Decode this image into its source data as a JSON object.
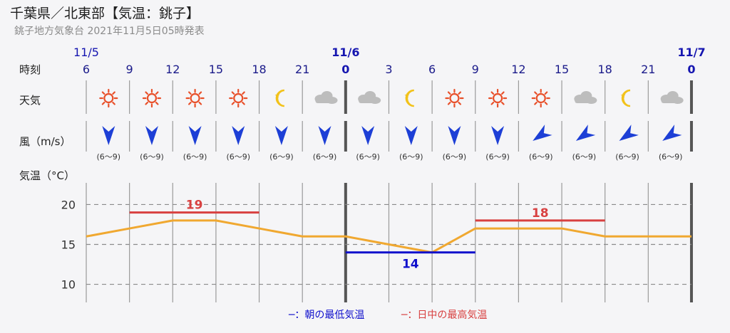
{
  "header": {
    "title": "千葉県／北東部【気温：銚子】",
    "subtitle": "銚子地方気象台 2021年11月5日05時発表"
  },
  "row_labels": {
    "time": "時刻",
    "weather": "天気",
    "wind": "風（m/s）",
    "temp": "気温（°C）"
  },
  "chart_data": {
    "type": "line",
    "date_labels": [
      "11/5",
      "11/6",
      "11/7"
    ],
    "hours": [
      "6",
      "9",
      "12",
      "15",
      "18",
      "21",
      "0",
      "3",
      "6",
      "9",
      "12",
      "15",
      "18",
      "21",
      "0"
    ],
    "weather": [
      "sunny",
      "sunny",
      "sunny",
      "sunny",
      "clear-night",
      "cloudy",
      "cloudy",
      "clear-night",
      "sunny",
      "sunny",
      "sunny",
      "cloudy",
      "clear-night",
      "cloudy"
    ],
    "wind": {
      "speed_labels": [
        "(6〜9)",
        "(6〜9)",
        "(6〜9)",
        "(6〜9)",
        "(6〜9)",
        "(6〜9)",
        "(6〜9)",
        "(6〜9)",
        "(6〜9)",
        "(6〜9)",
        "(6〜9)",
        "(6〜9)",
        "(6〜9)",
        "(6〜9)"
      ],
      "directions": [
        "N",
        "N",
        "N",
        "N",
        "N",
        "N",
        "N",
        "N",
        "N",
        "N",
        "NE",
        "NE",
        "NE",
        "NE"
      ]
    },
    "series": [
      {
        "values": [
          16,
          17,
          18,
          18,
          17,
          16,
          16,
          15,
          14,
          17,
          17,
          17,
          16,
          16,
          16
        ]
      }
    ],
    "daily_min": [
      {
        "value": 14,
        "label": "14",
        "from_index": 6,
        "to_index": 9
      }
    ],
    "daily_max": [
      {
        "value": 19,
        "label": "19",
        "from_index": 1,
        "to_index": 4
      },
      {
        "value": 18,
        "label": "18",
        "from_index": 9,
        "to_index": 12
      }
    ],
    "y_ticks": [
      10,
      15,
      20
    ],
    "ylim": [
      8,
      22
    ],
    "legend": {
      "min_label": "─：朝の最低気温",
      "max_label": "─：日中の最高気温",
      "placement": "bottom"
    },
    "colors": {
      "temp_line": "#f0a830",
      "min": "#1010cc",
      "max": "#d84040",
      "date": "#1515b0",
      "sun": "#e8502a",
      "moon": "#f2c21a",
      "cloud": "#bdbdbd",
      "arrow": "#1d3fd6"
    }
  }
}
